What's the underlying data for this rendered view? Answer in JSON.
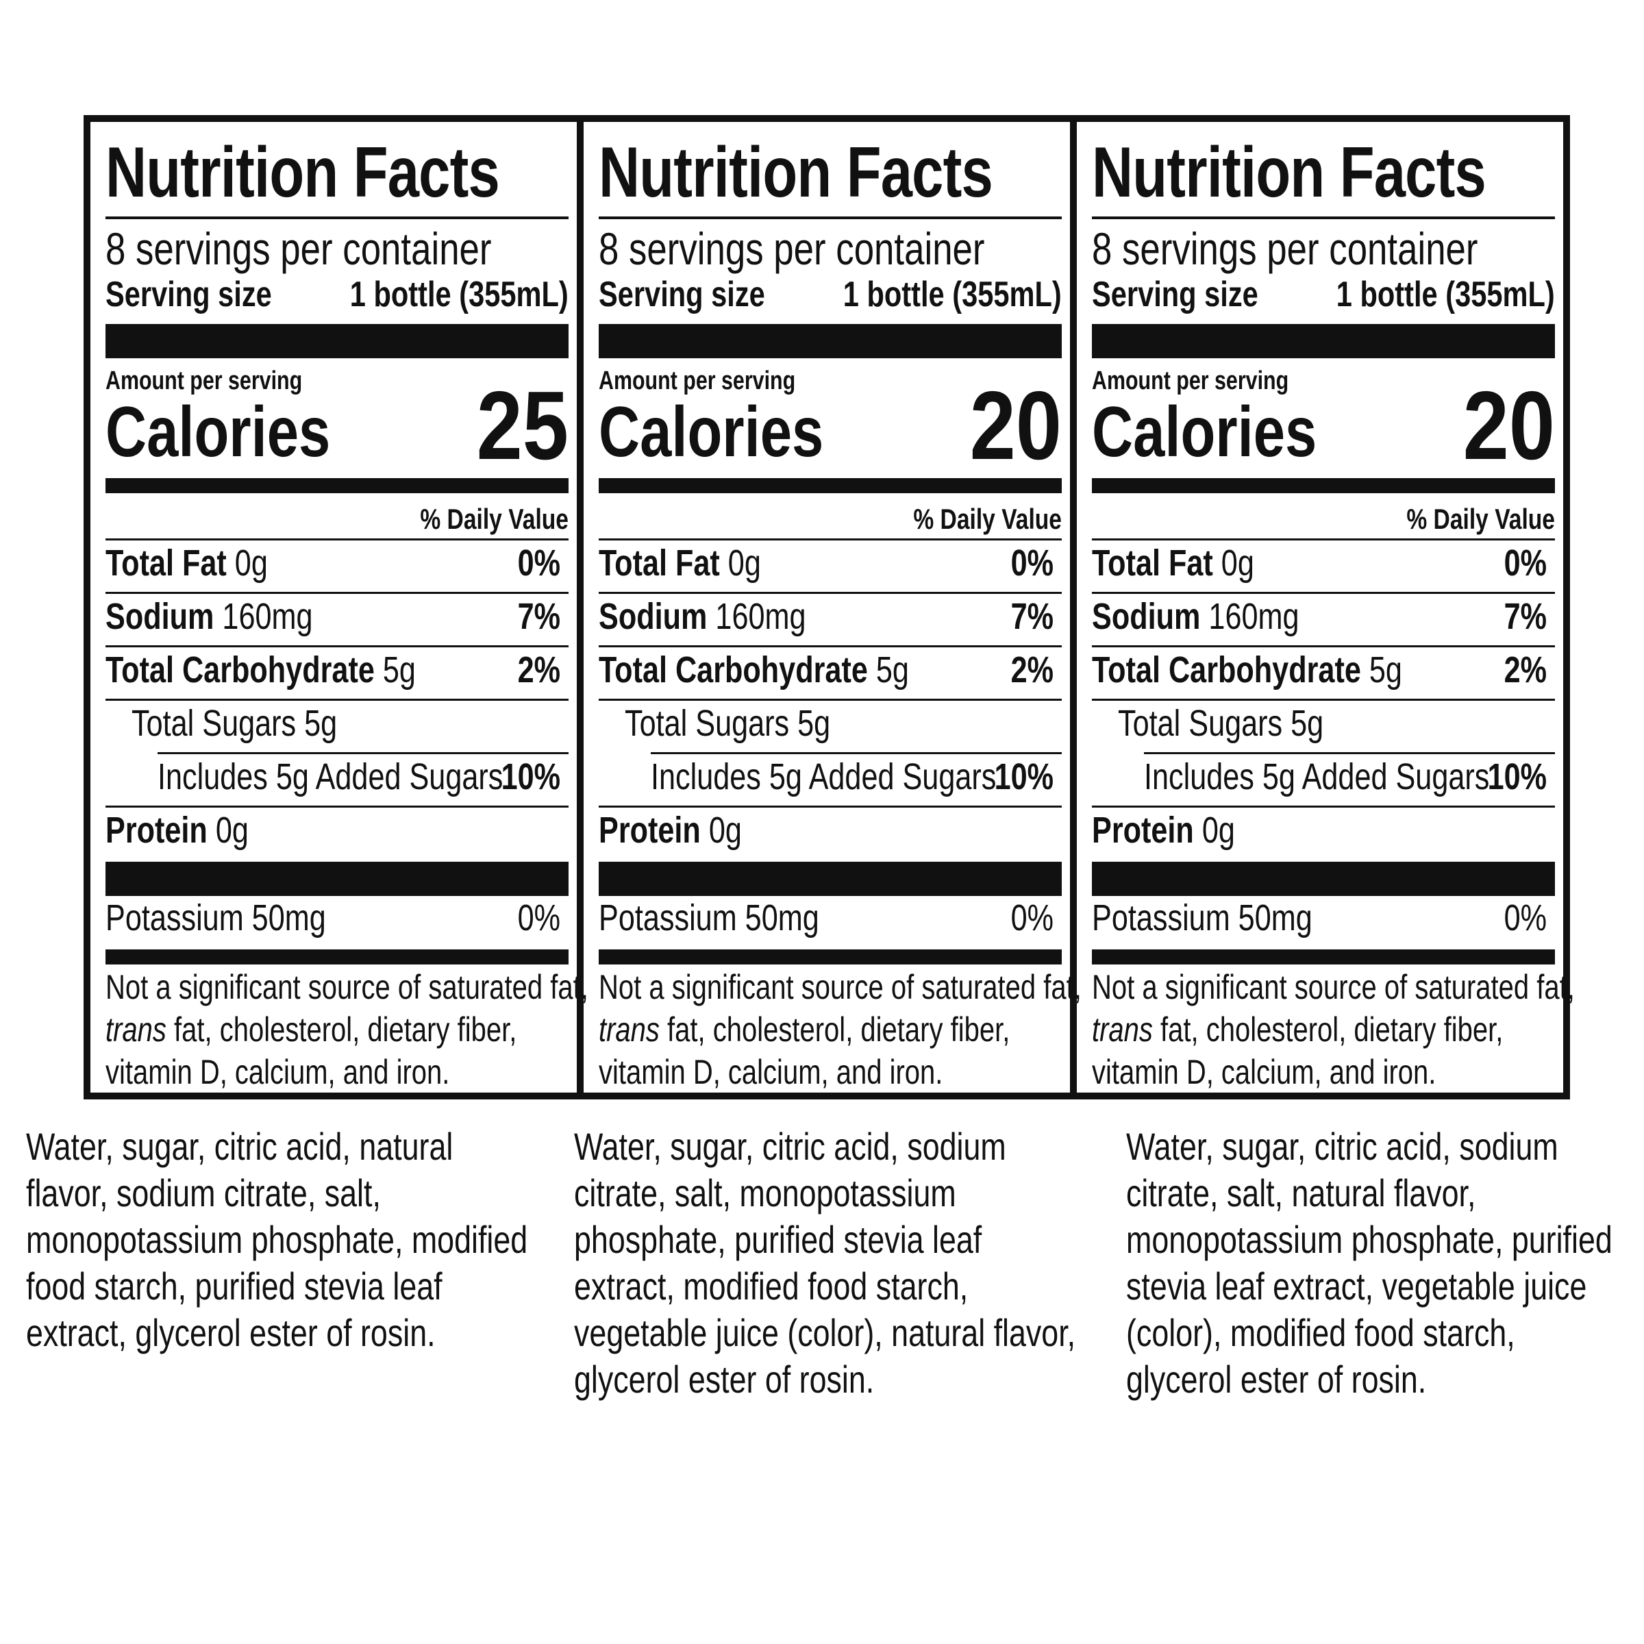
{
  "panels": [
    {
      "title": "Nutrition Facts",
      "servings_per_container": "8 servings per container",
      "serving_size_label": "Serving size",
      "serving_size_value": "1 bottle (355mL)",
      "amount_per_serving": "Amount per serving",
      "calories_label": "Calories",
      "calories_value": "25",
      "daily_value_header": "% Daily Value",
      "total_fat": {
        "label": "Total Fat",
        "amount": "0g",
        "dv": "0%"
      },
      "sodium": {
        "label": "Sodium",
        "amount": "160mg",
        "dv": "7%"
      },
      "total_carbohydrate": {
        "label": "Total Carbohydrate",
        "amount": "5g",
        "dv": "2%"
      },
      "total_sugars": {
        "label": "Total Sugars 5g"
      },
      "added_sugars": {
        "label": "Includes 5g Added Sugars",
        "dv": "10%"
      },
      "protein": {
        "label": "Protein",
        "amount": "0g"
      },
      "potassium": {
        "label": "Potassium 50mg",
        "dv": "0%"
      },
      "footnote": {
        "line1": "Not a significant source of saturated fat,",
        "trans": "trans",
        "line2_rest": " fat, cholesterol, dietary fiber,",
        "line3": "vitamin D, calcium, and iron."
      },
      "ingredients": [
        "Water, sugar, citric acid, natural",
        "flavor, sodium citrate, salt,",
        "monopotassium phosphate, modified",
        "food starch, purified stevia leaf",
        "extract, glycerol ester of rosin."
      ]
    },
    {
      "title": "Nutrition Facts",
      "servings_per_container": "8 servings per container",
      "serving_size_label": "Serving size",
      "serving_size_value": "1 bottle (355mL)",
      "amount_per_serving": "Amount per serving",
      "calories_label": "Calories",
      "calories_value": "20",
      "daily_value_header": "% Daily Value",
      "total_fat": {
        "label": "Total Fat",
        "amount": "0g",
        "dv": "0%"
      },
      "sodium": {
        "label": "Sodium",
        "amount": "160mg",
        "dv": "7%"
      },
      "total_carbohydrate": {
        "label": "Total Carbohydrate",
        "amount": "5g",
        "dv": "2%"
      },
      "total_sugars": {
        "label": "Total Sugars 5g"
      },
      "added_sugars": {
        "label": "Includes 5g Added Sugars",
        "dv": "10%"
      },
      "protein": {
        "label": "Protein",
        "amount": "0g"
      },
      "potassium": {
        "label": "Potassium 50mg",
        "dv": "0%"
      },
      "footnote": {
        "line1": "Not a significant source of saturated fat,",
        "trans": "trans",
        "line2_rest": " fat, cholesterol, dietary fiber,",
        "line3": "vitamin D, calcium, and iron."
      },
      "ingredients": [
        "Water, sugar, citric acid, sodium",
        "citrate, salt, monopotassium",
        "phosphate, purified stevia leaf",
        "extract, modified food starch,",
        "vegetable juice (color), natural flavor,",
        "glycerol ester of rosin."
      ]
    },
    {
      "title": "Nutrition Facts",
      "servings_per_container": "8 servings per container",
      "serving_size_label": "Serving size",
      "serving_size_value": "1 bottle (355mL)",
      "amount_per_serving": "Amount per serving",
      "calories_label": "Calories",
      "calories_value": "20",
      "daily_value_header": "% Daily Value",
      "total_fat": {
        "label": "Total Fat",
        "amount": "0g",
        "dv": "0%"
      },
      "sodium": {
        "label": "Sodium",
        "amount": "160mg",
        "dv": "7%"
      },
      "total_carbohydrate": {
        "label": "Total Carbohydrate",
        "amount": "5g",
        "dv": "2%"
      },
      "total_sugars": {
        "label": "Total Sugars 5g"
      },
      "added_sugars": {
        "label": "Includes 5g Added Sugars",
        "dv": "10%"
      },
      "protein": {
        "label": "Protein",
        "amount": "0g"
      },
      "potassium": {
        "label": "Potassium 50mg",
        "dv": "0%"
      },
      "footnote": {
        "line1": "Not a significant source of saturated fat,",
        "trans": "trans",
        "line2_rest": " fat, cholesterol, dietary fiber,",
        "line3": "vitamin D, calcium, and iron."
      },
      "ingredients": [
        "Water, sugar, citric acid, sodium",
        "citrate, salt, natural flavor,",
        "monopotassium phosphate, purified",
        "stevia leaf extract, vegetable juice",
        "(color), modified food starch,",
        "glycerol ester of rosin."
      ]
    }
  ]
}
